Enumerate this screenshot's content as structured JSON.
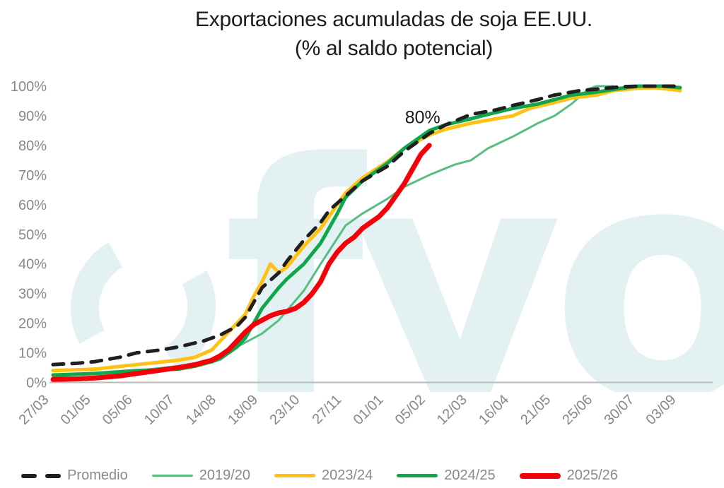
{
  "title": {
    "line1": "Exportaciones acumuladas de soja EE.UU.",
    "line2": "(% al saldo potencial)"
  },
  "watermark": {
    "text": "fyo"
  },
  "colors": {
    "promedio": "#1f1f1f",
    "y2019_20": "#57bd80",
    "y2023_24": "#ffc214",
    "y2024_25": "#10a64b",
    "y2025_26": "#f50008",
    "axis_line": "#b9b9b9",
    "axis_text": "#878787",
    "watermark": "#e4f1f3"
  },
  "legend": {
    "items": [
      {
        "label": "Promedio",
        "color": "#1f1f1f",
        "style": "dashed"
      },
      {
        "label": "2019/20",
        "color": "#57bd80",
        "style": "thin"
      },
      {
        "label": "2023/24",
        "color": "#ffc214",
        "style": "solid"
      },
      {
        "label": "2024/25",
        "color": "#10a64b",
        "style": "solid"
      },
      {
        "label": "2025/26",
        "color": "#f50008",
        "style": "thick"
      }
    ]
  },
  "chart_data": {
    "type": "line",
    "title": "Exportaciones acumuladas de soja EE.UU. (% al saldo potencial)",
    "grid": false,
    "legend_position": "bottom",
    "x_unit": "weeks (x = week index, tick every 5 weeks)",
    "weeks_per_tick": 5,
    "xlim_weeks": [
      0,
      75
    ],
    "x_tick_labels": [
      "27/03",
      "01/05",
      "05/06",
      "10/07",
      "14/08",
      "18/09",
      "23/10",
      "27/11",
      "01/01",
      "05/02",
      "12/03",
      "16/04",
      "21/05",
      "25/06",
      "30/07",
      "03/09"
    ],
    "ylim": [
      0,
      100
    ],
    "y_tick_labels": [
      "0%",
      "10%",
      "20%",
      "30%",
      "40%",
      "50%",
      "60%",
      "70%",
      "80%",
      "90%",
      "100%"
    ],
    "annotation": {
      "text": "80%",
      "series": "2025/26",
      "x_week": 44.2,
      "y_percent": 87.5
    },
    "series": [
      {
        "name": "Promedio",
        "color": "#1f1f1f",
        "dashed": true,
        "width": 5,
        "points": [
          [
            0,
            6
          ],
          [
            3,
            6.5
          ],
          [
            5,
            7
          ],
          [
            8,
            8.5
          ],
          [
            10,
            10
          ],
          [
            13,
            11
          ],
          [
            15,
            12
          ],
          [
            18,
            14
          ],
          [
            20,
            16
          ],
          [
            22,
            19
          ],
          [
            23,
            22
          ],
          [
            24,
            27
          ],
          [
            25,
            32
          ],
          [
            27,
            37
          ],
          [
            28,
            41
          ],
          [
            30,
            48
          ],
          [
            32,
            54
          ],
          [
            33,
            58
          ],
          [
            35,
            63
          ],
          [
            37,
            68
          ],
          [
            40,
            73
          ],
          [
            42,
            78
          ],
          [
            45,
            84
          ],
          [
            47,
            87
          ],
          [
            50,
            90.5
          ],
          [
            53,
            92
          ],
          [
            55,
            93.5
          ],
          [
            58,
            95.5
          ],
          [
            60,
            97
          ],
          [
            63,
            98.5
          ],
          [
            65,
            99
          ],
          [
            68,
            99.8
          ],
          [
            70,
            100
          ],
          [
            73,
            100
          ],
          [
            75,
            100
          ]
        ]
      },
      {
        "name": "2019/20",
        "color": "#57bd80",
        "dashed": false,
        "width": 3,
        "points": [
          [
            0,
            2
          ],
          [
            5,
            3
          ],
          [
            10,
            4
          ],
          [
            15,
            5.5
          ],
          [
            18,
            7
          ],
          [
            20,
            9
          ],
          [
            22,
            12
          ],
          [
            25,
            16.5
          ],
          [
            27,
            21
          ],
          [
            30,
            31
          ],
          [
            32,
            40
          ],
          [
            35,
            53
          ],
          [
            37,
            57
          ],
          [
            40,
            62
          ],
          [
            42,
            66
          ],
          [
            45,
            70
          ],
          [
            48,
            73.5
          ],
          [
            50,
            75
          ],
          [
            52,
            79
          ],
          [
            55,
            83
          ],
          [
            58,
            87.5
          ],
          [
            60,
            90
          ],
          [
            62,
            94
          ],
          [
            63,
            96.5
          ],
          [
            64,
            99
          ],
          [
            65,
            100
          ],
          [
            67,
            100
          ]
        ]
      },
      {
        "name": "2023/24",
        "color": "#ffc214",
        "dashed": false,
        "width": 5,
        "points": [
          [
            0,
            4
          ],
          [
            5,
            4.5
          ],
          [
            10,
            6
          ],
          [
            15,
            7.5
          ],
          [
            17,
            8.5
          ],
          [
            19,
            11
          ],
          [
            20,
            14
          ],
          [
            21,
            17
          ],
          [
            22,
            20
          ],
          [
            23,
            23
          ],
          [
            24,
            29
          ],
          [
            25,
            34
          ],
          [
            26,
            40
          ],
          [
            27,
            37
          ],
          [
            28,
            39
          ],
          [
            30,
            46
          ],
          [
            32,
            52
          ],
          [
            33,
            56
          ],
          [
            35,
            64
          ],
          [
            37,
            69
          ],
          [
            40,
            74.5
          ],
          [
            42,
            79
          ],
          [
            45,
            83.5
          ],
          [
            47,
            85.5
          ],
          [
            50,
            87.5
          ],
          [
            52,
            88.5
          ],
          [
            55,
            90
          ],
          [
            57,
            92.5
          ],
          [
            60,
            94.5
          ],
          [
            62,
            96
          ],
          [
            65,
            97
          ],
          [
            67,
            98.5
          ],
          [
            70,
            99.3
          ],
          [
            72,
            99.5
          ],
          [
            75,
            98.5
          ]
        ]
      },
      {
        "name": "2024/25",
        "color": "#10a64b",
        "dashed": false,
        "width": 5,
        "points": [
          [
            0,
            2.5
          ],
          [
            5,
            3
          ],
          [
            10,
            4
          ],
          [
            15,
            4.5
          ],
          [
            17,
            5.5
          ],
          [
            19,
            7
          ],
          [
            20,
            8
          ],
          [
            22,
            12
          ],
          [
            23,
            15
          ],
          [
            24,
            20
          ],
          [
            25,
            25
          ],
          [
            27,
            32
          ],
          [
            28,
            35
          ],
          [
            30,
            40
          ],
          [
            32,
            47
          ],
          [
            34,
            57
          ],
          [
            35,
            62.5
          ],
          [
            37,
            68
          ],
          [
            40,
            74
          ],
          [
            42,
            79
          ],
          [
            45,
            85
          ],
          [
            47,
            87
          ],
          [
            50,
            89
          ],
          [
            52,
            90.5
          ],
          [
            55,
            92.5
          ],
          [
            58,
            94
          ],
          [
            60,
            95.5
          ],
          [
            62,
            97
          ],
          [
            65,
            98
          ],
          [
            68,
            99.3
          ],
          [
            70,
            100
          ],
          [
            73,
            100
          ],
          [
            75,
            99.5
          ]
        ]
      },
      {
        "name": "2025/26",
        "color": "#f50008",
        "dashed": false,
        "width": 7,
        "points": [
          [
            0,
            1
          ],
          [
            3,
            1.2
          ],
          [
            5,
            1.5
          ],
          [
            8,
            2.2
          ],
          [
            10,
            3
          ],
          [
            13,
            4.2
          ],
          [
            15,
            5
          ],
          [
            17,
            6
          ],
          [
            19,
            7.5
          ],
          [
            20,
            9
          ],
          [
            21,
            11
          ],
          [
            22,
            14
          ],
          [
            23,
            17
          ],
          [
            24,
            19.5
          ],
          [
            25,
            21
          ],
          [
            26,
            22.5
          ],
          [
            27,
            23.5
          ],
          [
            28,
            24
          ],
          [
            29,
            25
          ],
          [
            30,
            27
          ],
          [
            31,
            30
          ],
          [
            32,
            34
          ],
          [
            33,
            40
          ],
          [
            34,
            44
          ],
          [
            35,
            47
          ],
          [
            36,
            49
          ],
          [
            37,
            52
          ],
          [
            38,
            54
          ],
          [
            39,
            56
          ],
          [
            40,
            59
          ],
          [
            41,
            63
          ],
          [
            42,
            67
          ],
          [
            43,
            72
          ],
          [
            44,
            77
          ],
          [
            45,
            80
          ]
        ]
      }
    ]
  }
}
